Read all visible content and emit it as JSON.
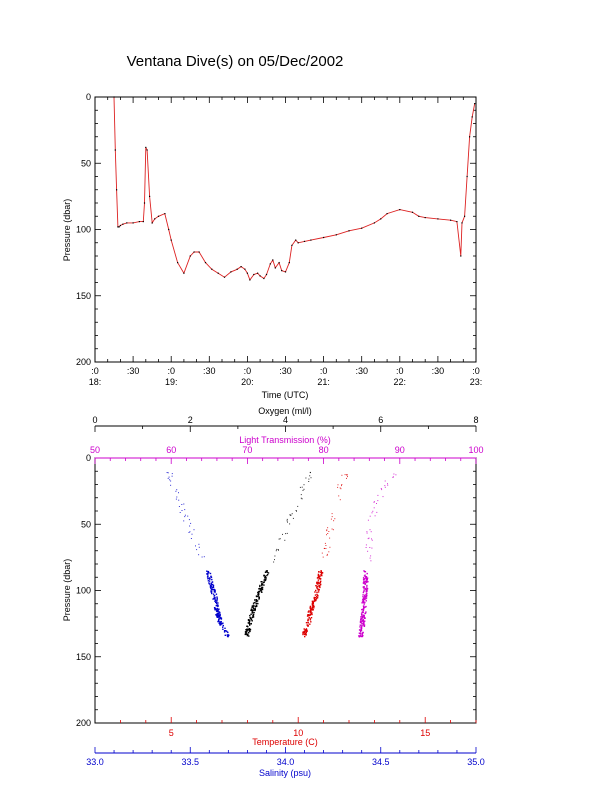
{
  "page_title": "Ventana Dive(s) on 05/Dec/2002",
  "colors": {
    "axis": "#000000",
    "profile_line": "#dd2222",
    "profile_marker": "#000000",
    "temperature": "#dd0000",
    "salinity": "#0000cc",
    "oxygen": "#000000",
    "light_transmission": "#cc00cc"
  },
  "chart_data": [
    {
      "type": "line",
      "title": "Ventana Dive(s) on 05/Dec/2002",
      "xlabel": "Time (UTC)",
      "ylabel": "Pressure (dbar)",
      "ylim": [
        200,
        0
      ],
      "xlim": [
        "18:00",
        "23:00"
      ],
      "x_ticks_top_row": [
        ":0",
        ":30",
        ":0",
        ":30",
        ":0",
        ":30",
        ":0",
        ":30",
        ":0",
        ":30",
        ":0"
      ],
      "x_ticks_bottom_row": [
        "18:",
        "19:",
        "20:",
        "21:",
        "22:",
        "23:"
      ],
      "y_ticks": [
        0,
        50,
        100,
        150,
        200
      ],
      "grid": false,
      "series": [
        {
          "x": [
            "18:15",
            "18:16",
            "18:17",
            "18:18",
            "18:19",
            "18:20",
            "18:22",
            "18:25",
            "18:30",
            "18:35",
            "18:38",
            "18:39",
            "18:40",
            "18:41",
            "18:43",
            "18:45",
            "18:47",
            "18:50",
            "18:55",
            "18:58",
            "19:00",
            "19:05",
            "19:10",
            "19:15",
            "19:18",
            "19:22",
            "19:27",
            "19:32",
            "19:37",
            "19:42",
            "19:47",
            "19:52",
            "19:55",
            "19:58",
            "20:00",
            "20:02",
            "20:05",
            "20:08",
            "20:10",
            "20:13",
            "20:15",
            "20:18",
            "20:20",
            "20:22",
            "20:25",
            "20:27",
            "20:30",
            "20:33",
            "20:35",
            "20:38",
            "20:40",
            "20:45",
            "20:50",
            "21:00",
            "21:10",
            "21:20",
            "21:30",
            "21:40",
            "21:45",
            "21:50",
            "22:00",
            "22:10",
            "22:15",
            "22:20",
            "22:30",
            "22:40",
            "22:45",
            "22:48",
            "22:49",
            "22:51",
            "22:53",
            "22:55",
            "22:57",
            "22:59"
          ],
          "y": [
            0,
            40,
            70,
            98,
            98,
            97,
            96,
            95,
            95,
            94,
            94,
            80,
            38,
            40,
            75,
            95,
            92,
            90,
            88,
            100,
            108,
            125,
            133,
            120,
            117,
            117,
            125,
            130,
            133,
            136,
            132,
            130,
            128,
            130,
            133,
            138,
            134,
            133,
            135,
            137,
            134,
            126,
            123,
            129,
            125,
            131,
            132,
            125,
            112,
            108,
            110,
            109,
            108,
            106,
            104,
            101,
            99,
            95,
            92,
            88,
            85,
            87,
            90,
            91,
            92,
            93,
            94,
            120,
            95,
            90,
            60,
            30,
            15,
            5
          ]
        }
      ]
    },
    {
      "type": "scatter",
      "ylabel": "Pressure (dbar)",
      "ylim": [
        200,
        0
      ],
      "y_ticks": [
        0,
        50,
        100,
        150,
        200
      ],
      "grid": false,
      "axes": [
        {
          "name": "temperature",
          "label": "Temperature (C)",
          "range": [
            2.0,
            17.0
          ],
          "ticks": [
            5,
            10,
            15
          ],
          "position": "bottom"
        },
        {
          "name": "salinity",
          "label": "Salinity (psu)",
          "range": [
            33.0,
            35.0
          ],
          "ticks": [
            "33.0",
            "33.5",
            "34.0",
            "34.5",
            "35.0"
          ],
          "position": "bottom-outer"
        },
        {
          "name": "oxygen",
          "label": "Oxygen (ml/l)",
          "range": [
            0,
            8
          ],
          "ticks": [
            0,
            2,
            4,
            6,
            8
          ],
          "position": "top-outer"
        },
        {
          "name": "light_transmission",
          "label": "Light Transmission (%)",
          "range": [
            50,
            100
          ],
          "ticks": [
            50,
            60,
            70,
            80,
            90,
            100
          ],
          "position": "top"
        }
      ],
      "series": [
        {
          "axis": "salinity",
          "cluster_profile": {
            "pressure": [
              85,
              95,
              105,
              115,
              125,
              135
            ],
            "value": [
              33.59,
              33.61,
              33.63,
              33.64,
              33.66,
              33.7
            ]
          },
          "sparse_profile": {
            "pressure": [
              10,
              20,
              30,
              40,
              50,
              60,
              70,
              80
            ],
            "value": [
              33.39,
              33.41,
              33.44,
              33.46,
              33.49,
              33.52,
              33.55,
              33.58
            ]
          }
        },
        {
          "axis": "oxygen",
          "cluster_profile": {
            "pressure": [
              85,
              95,
              105,
              115,
              125,
              135
            ],
            "value": [
              3.62,
              3.52,
              3.42,
              3.32,
              3.25,
              3.18
            ]
          },
          "sparse_profile": {
            "pressure": [
              10,
              20,
              30,
              40,
              50,
              60,
              70,
              80
            ],
            "value": [
              4.6,
              4.4,
              4.3,
              4.2,
              4.05,
              3.95,
              3.85,
              3.75
            ]
          }
        },
        {
          "axis": "temperature",
          "cluster_profile": {
            "pressure": [
              85,
              95,
              105,
              115,
              125,
              135
            ],
            "value": [
              10.9,
              10.8,
              10.7,
              10.5,
              10.4,
              10.2
            ]
          },
          "sparse_profile": {
            "pressure": [
              10,
              20,
              30,
              40,
              50,
              60,
              70,
              80
            ],
            "value": [
              11.9,
              11.7,
              11.6,
              11.5,
              11.3,
              11.2,
              11.1,
              11.0
            ]
          }
        },
        {
          "axis": "light_transmission",
          "cluster_profile": {
            "pressure": [
              85,
              95,
              105,
              115,
              125,
              135
            ],
            "value": [
              85.6,
              85.5,
              85.4,
              85.3,
              85.1,
              84.9
            ]
          },
          "sparse_profile": {
            "pressure": [
              10,
              20,
              30,
              40,
              50,
              60,
              70,
              80
            ],
            "value": [
              89.5,
              88.2,
              87.3,
              86.6,
              86.2,
              86.0,
              85.9,
              85.8
            ]
          }
        }
      ]
    }
  ]
}
